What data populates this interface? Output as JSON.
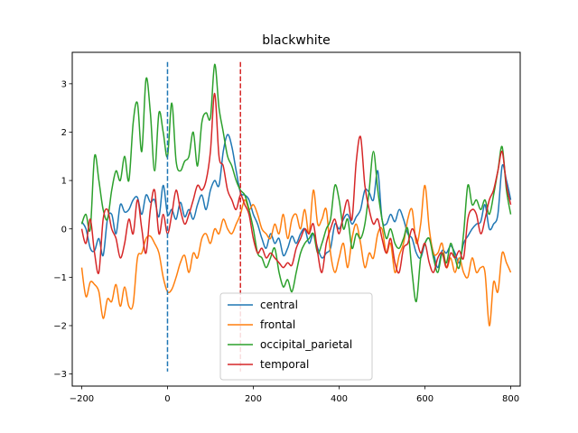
{
  "chart_data": {
    "type": "line",
    "title": "blackwhite",
    "xlabel": "",
    "ylabel": "",
    "xlim": [
      -222,
      822
    ],
    "ylim": [
      -3.25,
      3.65
    ],
    "xticks": [
      -200,
      0,
      200,
      400,
      600,
      800
    ],
    "xtick_labels": [
      "−200",
      "0",
      "200",
      "400",
      "600",
      "800"
    ],
    "yticks": [
      -3,
      -2,
      -1,
      0,
      1,
      2,
      3
    ],
    "ytick_labels": [
      "−3",
      "−2",
      "−1",
      "0",
      "1",
      "2",
      "3"
    ],
    "grid": false,
    "legend_position": "lower-center",
    "vlines": [
      {
        "x": 0,
        "ymin": -2.95,
        "ymax": 3.45,
        "color": "#1f77b4",
        "style": "dashed"
      },
      {
        "x": 170,
        "ymin": -2.95,
        "ymax": 3.45,
        "color": "#d62728",
        "style": "dashed"
      }
    ],
    "series": [
      {
        "name": "central",
        "color": "#1f77b4",
        "x": [
          -200,
          -190,
          -180,
          -170,
          -160,
          -150,
          -140,
          -130,
          -120,
          -110,
          -100,
          -90,
          -80,
          -70,
          -60,
          -50,
          -40,
          -30,
          -20,
          -10,
          0,
          10,
          20,
          30,
          40,
          50,
          60,
          70,
          80,
          90,
          100,
          110,
          120,
          130,
          140,
          150,
          160,
          170,
          180,
          190,
          200,
          210,
          220,
          230,
          240,
          250,
          260,
          270,
          280,
          290,
          300,
          310,
          320,
          330,
          340,
          350,
          360,
          370,
          380,
          390,
          400,
          410,
          420,
          430,
          440,
          450,
          460,
          470,
          480,
          490,
          500,
          510,
          520,
          530,
          540,
          550,
          560,
          570,
          580,
          590,
          600,
          610,
          620,
          630,
          640,
          650,
          660,
          670,
          680,
          690,
          700,
          710,
          720,
          730,
          740,
          750,
          760,
          770,
          780,
          790,
          800
        ],
        "y": [
          0.15,
          0.0,
          -0.4,
          -0.45,
          -0.2,
          -0.55,
          0.2,
          0.3,
          -0.1,
          0.5,
          0.35,
          0.4,
          0.6,
          0.65,
          0.3,
          0.7,
          0.55,
          0.6,
          0.25,
          0.9,
          0.3,
          0.4,
          0.2,
          0.55,
          0.25,
          0.4,
          0.2,
          0.5,
          0.7,
          0.4,
          0.8,
          1.0,
          0.9,
          1.6,
          1.95,
          1.7,
          1.2,
          0.75,
          0.7,
          0.6,
          0.3,
          0.1,
          -0.2,
          -0.4,
          -0.1,
          -0.3,
          -0.2,
          -0.55,
          -0.4,
          -0.15,
          -0.3,
          -0.1,
          0.0,
          -0.3,
          -0.1,
          -0.4,
          -0.6,
          -0.5,
          -0.4,
          0.1,
          0.0,
          0.2,
          0.3,
          0.1,
          0.25,
          0.4,
          0.8,
          0.75,
          0.6,
          1.2,
          0.2,
          0.1,
          0.3,
          0.15,
          0.4,
          0.2,
          -0.1,
          -0.2,
          -0.5,
          -0.6,
          -0.3,
          -0.2,
          -0.5,
          -0.8,
          -0.45,
          -0.5,
          -0.35,
          -0.5,
          -0.7,
          -0.3,
          -0.15,
          0.0,
          0.1,
          0.15,
          0.5,
          0.0,
          0.1,
          0.3,
          1.3,
          1.0,
          0.6
        ]
      },
      {
        "name": "frontal",
        "color": "#ff7f0e",
        "x": [
          -200,
          -190,
          -180,
          -170,
          -160,
          -150,
          -140,
          -130,
          -120,
          -110,
          -100,
          -90,
          -80,
          -70,
          -60,
          -50,
          -40,
          -30,
          -20,
          -10,
          0,
          10,
          20,
          30,
          40,
          50,
          60,
          70,
          80,
          90,
          100,
          110,
          120,
          130,
          140,
          150,
          160,
          170,
          180,
          190,
          200,
          210,
          220,
          230,
          240,
          250,
          260,
          270,
          280,
          290,
          300,
          310,
          320,
          330,
          340,
          350,
          360,
          370,
          380,
          390,
          400,
          410,
          420,
          430,
          440,
          450,
          460,
          470,
          480,
          490,
          500,
          510,
          520,
          530,
          540,
          550,
          560,
          570,
          580,
          590,
          600,
          610,
          620,
          630,
          640,
          650,
          660,
          670,
          680,
          690,
          700,
          710,
          720,
          730,
          740,
          750,
          760,
          770,
          780,
          790,
          800
        ],
        "y": [
          -0.8,
          -1.4,
          -1.1,
          -1.15,
          -1.3,
          -1.85,
          -1.45,
          -1.5,
          -1.15,
          -1.6,
          -1.2,
          -1.6,
          -1.55,
          -0.6,
          -0.5,
          -0.2,
          -0.15,
          -0.3,
          -0.5,
          -1.0,
          -1.3,
          -1.25,
          -1.0,
          -0.7,
          -0.55,
          -0.9,
          -0.5,
          -0.6,
          -0.2,
          -0.1,
          -0.3,
          0.0,
          -0.1,
          0.2,
          0.0,
          -0.1,
          0.1,
          0.3,
          0.6,
          0.4,
          0.5,
          0.3,
          0.0,
          -0.1,
          -0.2,
          0.1,
          -0.1,
          0.3,
          -0.2,
          0.2,
          0.3,
          0.0,
          0.4,
          -0.1,
          0.8,
          0.1,
          0.2,
          0.4,
          -0.5,
          -0.9,
          -0.6,
          -0.3,
          -0.8,
          -0.2,
          0.1,
          -0.3,
          -0.8,
          -0.5,
          -0.6,
          -0.1,
          0.0,
          -0.5,
          -0.3,
          -0.9,
          -0.55,
          -0.3,
          0.2,
          0.4,
          -0.3,
          0.1,
          0.9,
          0.0,
          -0.5,
          -0.5,
          -0.3,
          -0.8,
          -0.6,
          -0.9,
          -0.6,
          -0.9,
          -1.0,
          -0.6,
          -0.9,
          -0.8,
          -0.9,
          -2.0,
          -1.1,
          -1.3,
          -0.5,
          -0.7,
          -0.9
        ]
      },
      {
        "name": "occipital_parietal",
        "color": "#2ca02c",
        "x": [
          -200,
          -190,
          -180,
          -170,
          -160,
          -150,
          -140,
          -130,
          -120,
          -110,
          -100,
          -90,
          -80,
          -70,
          -60,
          -50,
          -40,
          -30,
          -20,
          -10,
          0,
          10,
          20,
          30,
          40,
          50,
          60,
          70,
          80,
          90,
          100,
          110,
          120,
          130,
          140,
          150,
          160,
          170,
          180,
          190,
          200,
          210,
          220,
          230,
          240,
          250,
          260,
          270,
          280,
          290,
          300,
          310,
          320,
          330,
          340,
          350,
          360,
          370,
          380,
          390,
          400,
          410,
          420,
          430,
          440,
          450,
          460,
          470,
          480,
          490,
          500,
          510,
          520,
          530,
          540,
          550,
          560,
          570,
          580,
          590,
          600,
          610,
          620,
          630,
          640,
          650,
          660,
          670,
          680,
          690,
          700,
          710,
          720,
          730,
          740,
          750,
          760,
          770,
          780,
          790,
          800
        ],
        "y": [
          0.1,
          0.3,
          0.0,
          1.5,
          1.0,
          0.4,
          0.2,
          0.8,
          1.2,
          1.0,
          1.5,
          1.0,
          2.2,
          2.6,
          1.6,
          3.1,
          2.4,
          1.2,
          2.4,
          2.0,
          1.5,
          2.6,
          1.4,
          1.2,
          1.4,
          1.5,
          2.0,
          1.3,
          2.2,
          2.4,
          2.3,
          3.4,
          2.5,
          2.0,
          1.5,
          1.3,
          1.0,
          0.8,
          0.7,
          0.4,
          0.0,
          -0.5,
          -0.6,
          -0.8,
          -0.6,
          -0.4,
          -0.9,
          -1.2,
          -1.05,
          -1.3,
          -0.9,
          -0.5,
          -0.3,
          -0.2,
          -0.1,
          -0.5,
          -0.3,
          0.0,
          0.2,
          0.9,
          0.6,
          0.0,
          0.2,
          -0.4,
          -0.1,
          -0.2,
          0.1,
          0.8,
          1.6,
          0.8,
          0.2,
          -0.2,
          0.0,
          -0.3,
          -0.4,
          -0.2,
          0.0,
          -0.9,
          -1.5,
          -0.6,
          -0.3,
          -0.2,
          -0.6,
          -0.9,
          -0.5,
          -0.7,
          -0.3,
          -0.6,
          -0.8,
          -0.1,
          0.9,
          0.5,
          0.6,
          0.4,
          0.6,
          0.3,
          0.7,
          1.2,
          1.7,
          0.8,
          0.3
        ]
      },
      {
        "name": "temporal",
        "color": "#d62728",
        "x": [
          -200,
          -190,
          -180,
          -170,
          -160,
          -150,
          -140,
          -130,
          -120,
          -110,
          -100,
          -90,
          -80,
          -70,
          -60,
          -50,
          -40,
          -30,
          -20,
          -10,
          0,
          10,
          20,
          30,
          40,
          50,
          60,
          70,
          80,
          90,
          100,
          110,
          120,
          130,
          140,
          150,
          160,
          170,
          180,
          190,
          200,
          210,
          220,
          230,
          240,
          250,
          260,
          270,
          280,
          290,
          300,
          310,
          320,
          330,
          340,
          350,
          360,
          370,
          380,
          390,
          400,
          410,
          420,
          430,
          440,
          450,
          460,
          470,
          480,
          490,
          500,
          510,
          520,
          530,
          540,
          550,
          560,
          570,
          580,
          590,
          600,
          610,
          620,
          630,
          640,
          650,
          660,
          670,
          680,
          690,
          700,
          710,
          720,
          730,
          740,
          750,
          760,
          770,
          780,
          790,
          800
        ],
        "y": [
          0.0,
          -0.3,
          0.2,
          -0.5,
          -0.9,
          0.2,
          0.4,
          0.0,
          -0.2,
          -0.6,
          -0.3,
          0.2,
          -0.1,
          0.6,
          0.0,
          -0.5,
          0.4,
          0.8,
          -0.1,
          0.3,
          -0.1,
          0.3,
          0.8,
          0.4,
          0.1,
          0.3,
          0.6,
          0.9,
          0.8,
          1.0,
          1.6,
          2.8,
          1.5,
          1.3,
          0.8,
          0.6,
          0.4,
          0.7,
          0.5,
          0.3,
          -0.2,
          -0.5,
          -0.4,
          -0.6,
          -0.5,
          -0.6,
          -0.7,
          -0.8,
          -0.7,
          -0.75,
          -0.4,
          -0.2,
          0.0,
          -0.1,
          0.1,
          -0.5,
          -0.9,
          -0.3,
          0.0,
          0.2,
          -0.1,
          0.3,
          0.6,
          0.2,
          1.4,
          1.9,
          0.9,
          0.4,
          0.1,
          0.2,
          -0.2,
          -0.5,
          -0.2,
          -0.7,
          -0.9,
          -0.4,
          -0.3,
          0.0,
          -0.2,
          -0.5,
          -0.3,
          -0.7,
          -0.9,
          -0.6,
          -0.5,
          -0.8,
          -0.5,
          -0.6,
          -0.45,
          -0.6,
          0.2,
          0.4,
          0.3,
          -0.1,
          0.2,
          0.6,
          0.8,
          1.2,
          1.6,
          0.9,
          0.5
        ]
      }
    ]
  }
}
